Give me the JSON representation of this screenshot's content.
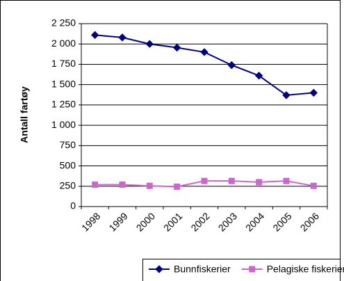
{
  "chart_data": {
    "type": "line",
    "y_label": "Antall fartøy",
    "categories": [
      "1998",
      "1999",
      "2000",
      "2001",
      "2002",
      "2003",
      "2004",
      "2005",
      "2006"
    ],
    "series": [
      {
        "name": "Bunnfiskerier",
        "color": "#000080",
        "marker": "diamond",
        "values": [
          2110,
          2080,
          2000,
          1955,
          1900,
          1740,
          1610,
          1370,
          1400
        ]
      },
      {
        "name": "Pelagiske fiskerier",
        "color": "#cc66cc",
        "marker": "square",
        "values": [
          270,
          270,
          255,
          245,
          315,
          315,
          300,
          315,
          255
        ]
      }
    ],
    "ylim": [
      0,
      2250
    ],
    "yticks": [
      0,
      250,
      500,
      750,
      {
        "value": 1000,
        "label": "1 000"
      },
      {
        "value": 1250,
        "label": "1 250"
      },
      {
        "value": 1500,
        "label": "1 500"
      },
      {
        "value": 1750,
        "label": "1 750"
      },
      {
        "value": 2000,
        "label": "2 000"
      },
      {
        "value": 2250,
        "label": "2 250"
      }
    ],
    "grid": true,
    "legend": "bottom"
  }
}
